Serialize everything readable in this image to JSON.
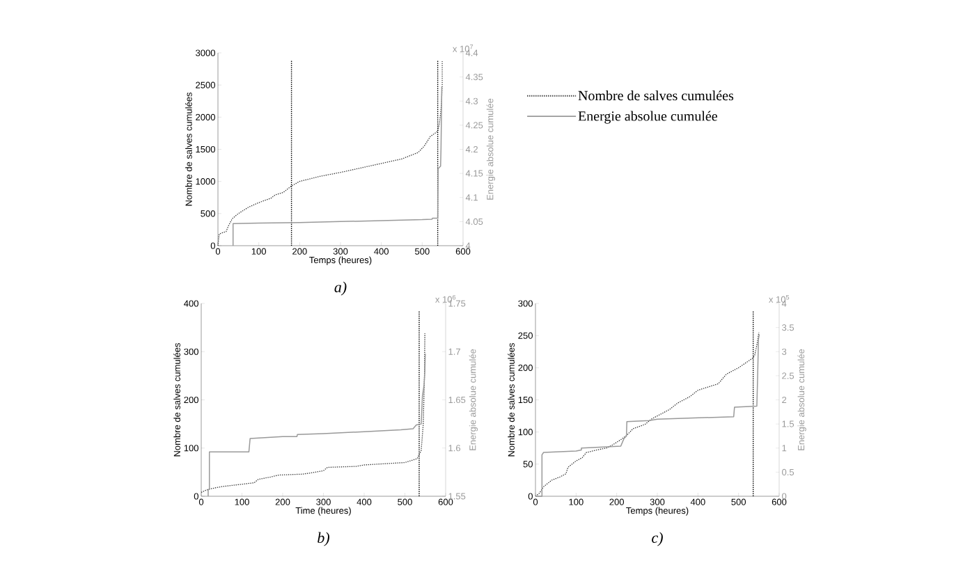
{
  "chart_data": [
    {
      "type": "line",
      "xlabel": "Temps (heures)",
      "ylabel": "Nombre de salves cumulées",
      "y2label": "Energie absolue cumulée",
      "xlim": [
        0,
        600
      ],
      "xticks": [
        0,
        100,
        200,
        300,
        400,
        500,
        600
      ],
      "ylim": [
        0,
        3000
      ],
      "yticks": [
        0,
        500,
        1000,
        1500,
        2000,
        2500,
        3000
      ],
      "y2lim": [
        4,
        4.4
      ],
      "y2ticks": [
        4,
        4.05,
        4.1,
        4.15,
        4.2,
        4.25,
        4.3,
        4.35,
        4.4
      ],
      "legend": "right",
      "marker": "none",
      "series": [
        {
          "name": "Nombre de salves cumulées",
          "color": "#333333",
          "line_style": "dotted",
          "x": [
            0,
            3,
            10,
            20,
            25,
            35,
            50,
            75,
            100,
            130,
            140,
            160,
            180,
            200,
            250,
            300,
            350,
            400,
            450,
            490,
            505,
            520,
            538,
            542,
            545,
            547,
            549,
            549
          ],
          "values": [
            0,
            180,
            200,
            220,
            300,
            420,
            500,
            600,
            670,
            740,
            790,
            830,
            930,
            1000,
            1080,
            1140,
            1210,
            1280,
            1350,
            1450,
            1550,
            1700,
            1780,
            1900,
            2050,
            2200,
            2500,
            2870
          ]
        },
        {
          "name": "Energie absolue cumulée",
          "color": "#999999",
          "line_style": "solid",
          "axis": "y2",
          "x": [
            37,
            37,
            100,
            200,
            300,
            400,
            500,
            524,
            525,
            538,
            539,
            545,
            546,
            548
          ],
          "values": [
            4.0,
            4.046,
            4.047,
            4.048,
            4.05,
            4.052,
            4.054,
            4.055,
            4.057,
            4.057,
            4.16,
            4.165,
            4.2,
            4.33
          ]
        }
      ],
      "ref_lines": [
        {
          "axis": "x",
          "value": 180,
          "color": "#000000",
          "line_style": "dotted"
        },
        {
          "axis": "x",
          "value": 538,
          "color": "#000000",
          "line_style": "dotted"
        }
      ],
      "annotations": [
        "x 10$^{7}$",
        "a)"
      ]
    },
    {
      "type": "line",
      "xlabel": "Time (heures)",
      "ylabel": "Nombre de salves cumulées",
      "y2label": "Energie absolue cumulée",
      "xlim": [
        0,
        600
      ],
      "xticks": [
        0,
        100,
        200,
        300,
        400,
        500,
        600
      ],
      "ylim": [
        0,
        400
      ],
      "yticks": [
        0,
        100,
        200,
        300,
        400
      ],
      "y2lim": [
        1.55,
        1.75
      ],
      "y2ticks": [
        1.55,
        1.6,
        1.65,
        1.7,
        1.75
      ],
      "marker": "none",
      "series": [
        {
          "color": "#333333",
          "line_style": "dotted",
          "x": [
            0,
            10,
            20,
            50,
            100,
            130,
            140,
            170,
            190,
            250,
            280,
            300,
            310,
            380,
            400,
            500,
            530,
            540,
            545,
            548,
            549
          ],
          "values": [
            8,
            12,
            15,
            20,
            25,
            28,
            35,
            40,
            44,
            46,
            50,
            53,
            60,
            62,
            65,
            70,
            78,
            95,
            150,
            250,
            338
          ]
        },
        {
          "color": "#999999",
          "line_style": "solid",
          "axis": "y2",
          "x": [
            17,
            17,
            20,
            20,
            117,
            120,
            200,
            235,
            236,
            300,
            400,
            490,
            520,
            528,
            540,
            543,
            547,
            549,
            550
          ],
          "values": [
            1.55,
            1.557,
            1.557,
            1.596,
            1.596,
            1.61,
            1.612,
            1.612,
            1.614,
            1.615,
            1.617,
            1.619,
            1.62,
            1.624,
            1.625,
            1.654,
            1.665,
            1.68,
            1.698
          ]
        }
      ],
      "ref_lines": [
        {
          "axis": "x",
          "value": 535,
          "color": "#000000",
          "line_style": "dotted"
        }
      ],
      "annotations": [
        "x 10$^{6}$",
        "b)"
      ]
    },
    {
      "type": "line",
      "xlabel": "Temps (heures)",
      "ylabel": "Nombre de salves cumulées",
      "y2label": "Energie absolue cumulée",
      "xlim": [
        0,
        600
      ],
      "xticks": [
        0,
        100,
        200,
        300,
        400,
        500,
        600
      ],
      "ylim": [
        0,
        300
      ],
      "yticks": [
        0,
        50,
        100,
        150,
        200,
        250,
        300
      ],
      "y2lim": [
        0,
        4
      ],
      "y2ticks": [
        0,
        0.5,
        1,
        1.5,
        2,
        2.5,
        3,
        3.5,
        4
      ],
      "marker": "none",
      "series": [
        {
          "color": "#333333",
          "line_style": "dotted",
          "x": [
            0,
            10,
            20,
            40,
            60,
            75,
            80,
            100,
            115,
            125,
            150,
            175,
            190,
            210,
            225,
            240,
            270,
            285,
            300,
            330,
            350,
            380,
            400,
            450,
            470,
            500,
            535,
            540,
            545,
            550
          ],
          "values": [
            0,
            5,
            15,
            25,
            30,
            35,
            45,
            55,
            60,
            68,
            72,
            75,
            80,
            88,
            95,
            105,
            112,
            120,
            125,
            135,
            145,
            155,
            165,
            175,
            190,
            200,
            215,
            220,
            235,
            255
          ]
        },
        {
          "color": "#999999",
          "line_style": "solid",
          "axis": "y2",
          "x": [
            0,
            16,
            16,
            20,
            100,
            113,
            113,
            210,
            218,
            224,
            225,
            280,
            300,
            488,
            490,
            545,
            547,
            549,
            551
          ],
          "values": [
            0,
            0,
            0.86,
            0.91,
            0.94,
            0.96,
            1.0,
            1.04,
            1.2,
            1.25,
            1.55,
            1.57,
            1.6,
            1.65,
            1.85,
            1.87,
            2.5,
            3.26,
            3.36
          ]
        }
      ],
      "ref_lines": [
        {
          "axis": "x",
          "value": 536,
          "color": "#000000",
          "line_style": "dotted"
        }
      ],
      "annotations": [
        "x 10$^{5}$",
        "c)"
      ]
    }
  ]
}
